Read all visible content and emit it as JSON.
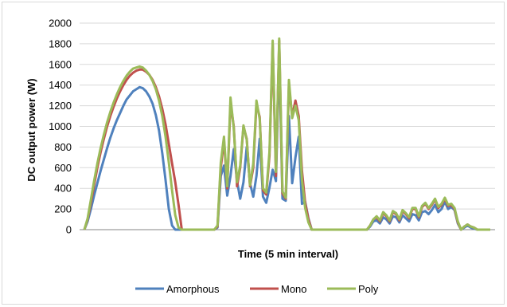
{
  "chart_data": {
    "type": "line",
    "xlabel": "Time (5 min interval)",
    "ylabel": "DC output power (W)",
    "ylim": [
      0,
      2000
    ],
    "yticks": [
      0,
      200,
      400,
      600,
      800,
      1000,
      1200,
      1400,
      1600,
      1800,
      2000
    ],
    "grid": true,
    "legend_position": "bottom",
    "x": [
      0,
      4,
      8,
      12,
      16,
      20,
      24,
      28,
      32,
      36,
      40,
      44,
      48,
      52,
      56,
      60,
      64,
      68,
      72,
      76,
      80,
      84,
      88,
      92,
      96,
      100,
      104,
      108,
      112,
      116,
      120,
      124,
      128,
      132,
      136,
      140,
      144,
      148,
      152,
      156,
      160,
      164,
      168,
      172,
      176,
      180,
      184,
      188,
      192,
      196,
      200,
      204,
      208,
      212,
      216,
      220,
      224,
      228,
      232,
      236,
      240,
      244,
      248,
      252,
      256,
      260,
      264,
      268,
      272,
      276,
      280,
      284,
      288,
      292,
      296,
      300,
      304,
      308,
      312,
      316,
      320,
      324,
      328,
      332,
      336,
      340,
      344,
      348,
      352,
      356,
      360,
      364,
      368,
      372,
      376,
      380,
      384,
      388,
      392,
      396,
      400,
      404,
      408,
      412,
      416,
      420,
      424,
      428,
      432,
      436,
      440,
      444,
      448,
      452,
      456,
      460,
      464,
      468,
      472,
      476,
      480,
      484,
      488,
      492,
      496,
      500
    ],
    "series": [
      {
        "name": "Amorphous",
        "color": "#4f81bd",
        "values": [
          0,
          80,
          200,
          330,
          450,
          570,
          680,
          790,
          890,
          980,
          1060,
          1130,
          1200,
          1260,
          1300,
          1340,
          1360,
          1380,
          1370,
          1340,
          1290,
          1220,
          1110,
          960,
          740,
          480,
          200,
          40,
          0,
          0,
          0,
          0,
          0,
          0,
          0,
          0,
          0,
          0,
          0,
          0,
          0,
          20,
          520,
          620,
          330,
          520,
          780,
          470,
          300,
          460,
          800,
          450,
          320,
          520,
          880,
          320,
          260,
          410,
          580,
          470,
          1700,
          300,
          280,
          1100,
          450,
          700,
          900,
          250,
          270,
          110,
          0,
          0,
          0,
          0,
          0,
          0,
          0,
          0,
          0,
          0,
          0,
          0,
          0,
          0,
          0,
          0,
          0,
          0,
          30,
          80,
          90,
          60,
          120,
          100,
          60,
          130,
          120,
          70,
          140,
          110,
          80,
          150,
          140,
          90,
          170,
          180,
          150,
          190,
          240,
          170,
          200,
          270,
          200,
          220,
          190,
          60,
          0,
          20,
          40,
          20,
          10,
          0,
          0,
          0,
          0,
          0
        ],
        "_display_note": ""
      },
      {
        "name": "Mono",
        "color": "#c0504d",
        "values": [
          0,
          100,
          260,
          430,
          600,
          750,
          880,
          1000,
          1100,
          1190,
          1270,
          1340,
          1400,
          1450,
          1490,
          1520,
          1540,
          1550,
          1550,
          1530,
          1500,
          1450,
          1380,
          1290,
          1170,
          1020,
          830,
          640,
          460,
          240,
          0,
          0,
          0,
          0,
          0,
          0,
          0,
          0,
          0,
          0,
          0,
          30,
          600,
          870,
          400,
          1230,
          1000,
          420,
          600,
          1000,
          880,
          420,
          600,
          1220,
          1090,
          380,
          340,
          720,
          1800,
          520,
          1830,
          350,
          300,
          1400,
          1100,
          1250,
          1100,
          570,
          260,
          100,
          0,
          0,
          0,
          0,
          0,
          0,
          0,
          0,
          0,
          0,
          0,
          0,
          0,
          0,
          0,
          0,
          0,
          0,
          40,
          100,
          120,
          80,
          160,
          130,
          80,
          170,
          150,
          90,
          180,
          150,
          110,
          200,
          200,
          120,
          220,
          250,
          200,
          240,
          290,
          210,
          240,
          300,
          230,
          240,
          200,
          70,
          0,
          30,
          50,
          30,
          20,
          0,
          0,
          0,
          0,
          0
        ],
        "_display_note": ""
      },
      {
        "name": "Poly",
        "color": "#9bbb59",
        "values": [
          0,
          110,
          290,
          470,
          640,
          790,
          920,
          1040,
          1140,
          1230,
          1310,
          1380,
          1440,
          1490,
          1530,
          1560,
          1570,
          1580,
          1570,
          1540,
          1500,
          1440,
          1360,
          1250,
          1100,
          900,
          650,
          380,
          140,
          20,
          0,
          0,
          0,
          0,
          0,
          0,
          0,
          0,
          0,
          0,
          0,
          40,
          650,
          900,
          420,
          1280,
          980,
          460,
          620,
          1010,
          870,
          430,
          640,
          1250,
          1070,
          400,
          360,
          760,
          1830,
          560,
          1850,
          370,
          310,
          1450,
          1080,
          1200,
          1060,
          480,
          210,
          70,
          0,
          0,
          0,
          0,
          0,
          0,
          0,
          0,
          0,
          0,
          0,
          0,
          0,
          0,
          0,
          0,
          0,
          0,
          40,
          100,
          130,
          90,
          170,
          140,
          90,
          180,
          160,
          100,
          190,
          160,
          120,
          210,
          210,
          130,
          230,
          260,
          210,
          250,
          300,
          220,
          250,
          310,
          240,
          250,
          210,
          80,
          0,
          30,
          50,
          30,
          20,
          0,
          0,
          0,
          0,
          0
        ],
        "_display_note": ""
      }
    ]
  }
}
